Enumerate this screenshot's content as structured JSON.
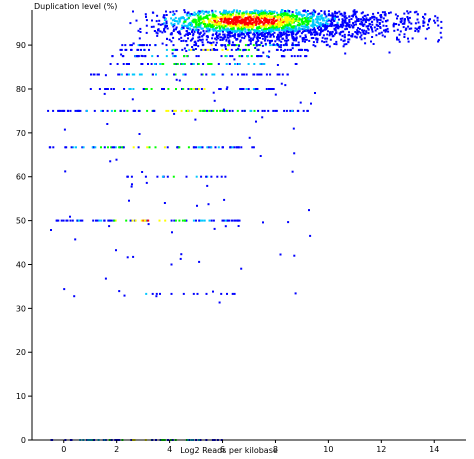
{
  "chart_data": {
    "type": "scatter",
    "title": "",
    "xlabel": "Log2 Reads per kilobase",
    "ylabel": "Duplication level (%)",
    "xlim": [
      -1.2,
      15.2
    ],
    "ylim": [
      0,
      98
    ],
    "x_ticks": [
      0,
      2,
      4,
      6,
      8,
      10,
      12,
      14
    ],
    "y_ticks": [
      0,
      10,
      20,
      30,
      40,
      50,
      60,
      70,
      80,
      90
    ],
    "grid": false,
    "legend": "none",
    "color_scale": [
      "#0000ff",
      "#00c8ff",
      "#00ff00",
      "#ffff00",
      "#ff0000"
    ],
    "density_bands": [
      {
        "y": 0,
        "x_from": -0.5,
        "x_to": 6.0,
        "density": 0.7
      },
      {
        "y": 33.3,
        "x_from": 1.7,
        "x_to": 6.5,
        "density": 0.2
      },
      {
        "y": 40,
        "x_from": 3.6,
        "x_to": 4.2,
        "density": 0.1
      },
      {
        "y": 50,
        "x_from": -0.3,
        "x_to": 6.7,
        "density": 0.75
      },
      {
        "y": 60,
        "x_from": 2.3,
        "x_to": 6.2,
        "density": 0.35
      },
      {
        "y": 66.7,
        "x_from": -0.6,
        "x_to": 7.2,
        "density": 0.6
      },
      {
        "y": 75,
        "x_from": -0.6,
        "x_to": 9.5,
        "density": 0.65
      },
      {
        "y": 80,
        "x_from": 1.0,
        "x_to": 8.3,
        "density": 0.55
      },
      {
        "y": 83.3,
        "x_from": 1.0,
        "x_to": 8.7,
        "density": 0.5
      },
      {
        "y": 85.7,
        "x_from": 1.6,
        "x_to": 8.8,
        "density": 0.5
      },
      {
        "y": 87.5,
        "x_from": 1.8,
        "x_to": 9.2,
        "density": 0.55
      },
      {
        "y": 88.9,
        "x_from": 2.0,
        "x_to": 9.4,
        "density": 0.6
      },
      {
        "y": 90,
        "x_from": 2.2,
        "x_to": 9.6,
        "density": 0.6
      }
    ],
    "dense_cluster": {
      "x_center": 7.0,
      "y_center": 95.0,
      "x_spread": 1.9,
      "y_spread": 2.3,
      "x_range": [
        2.5,
        14.3
      ],
      "y_range": [
        88,
        98
      ]
    }
  }
}
